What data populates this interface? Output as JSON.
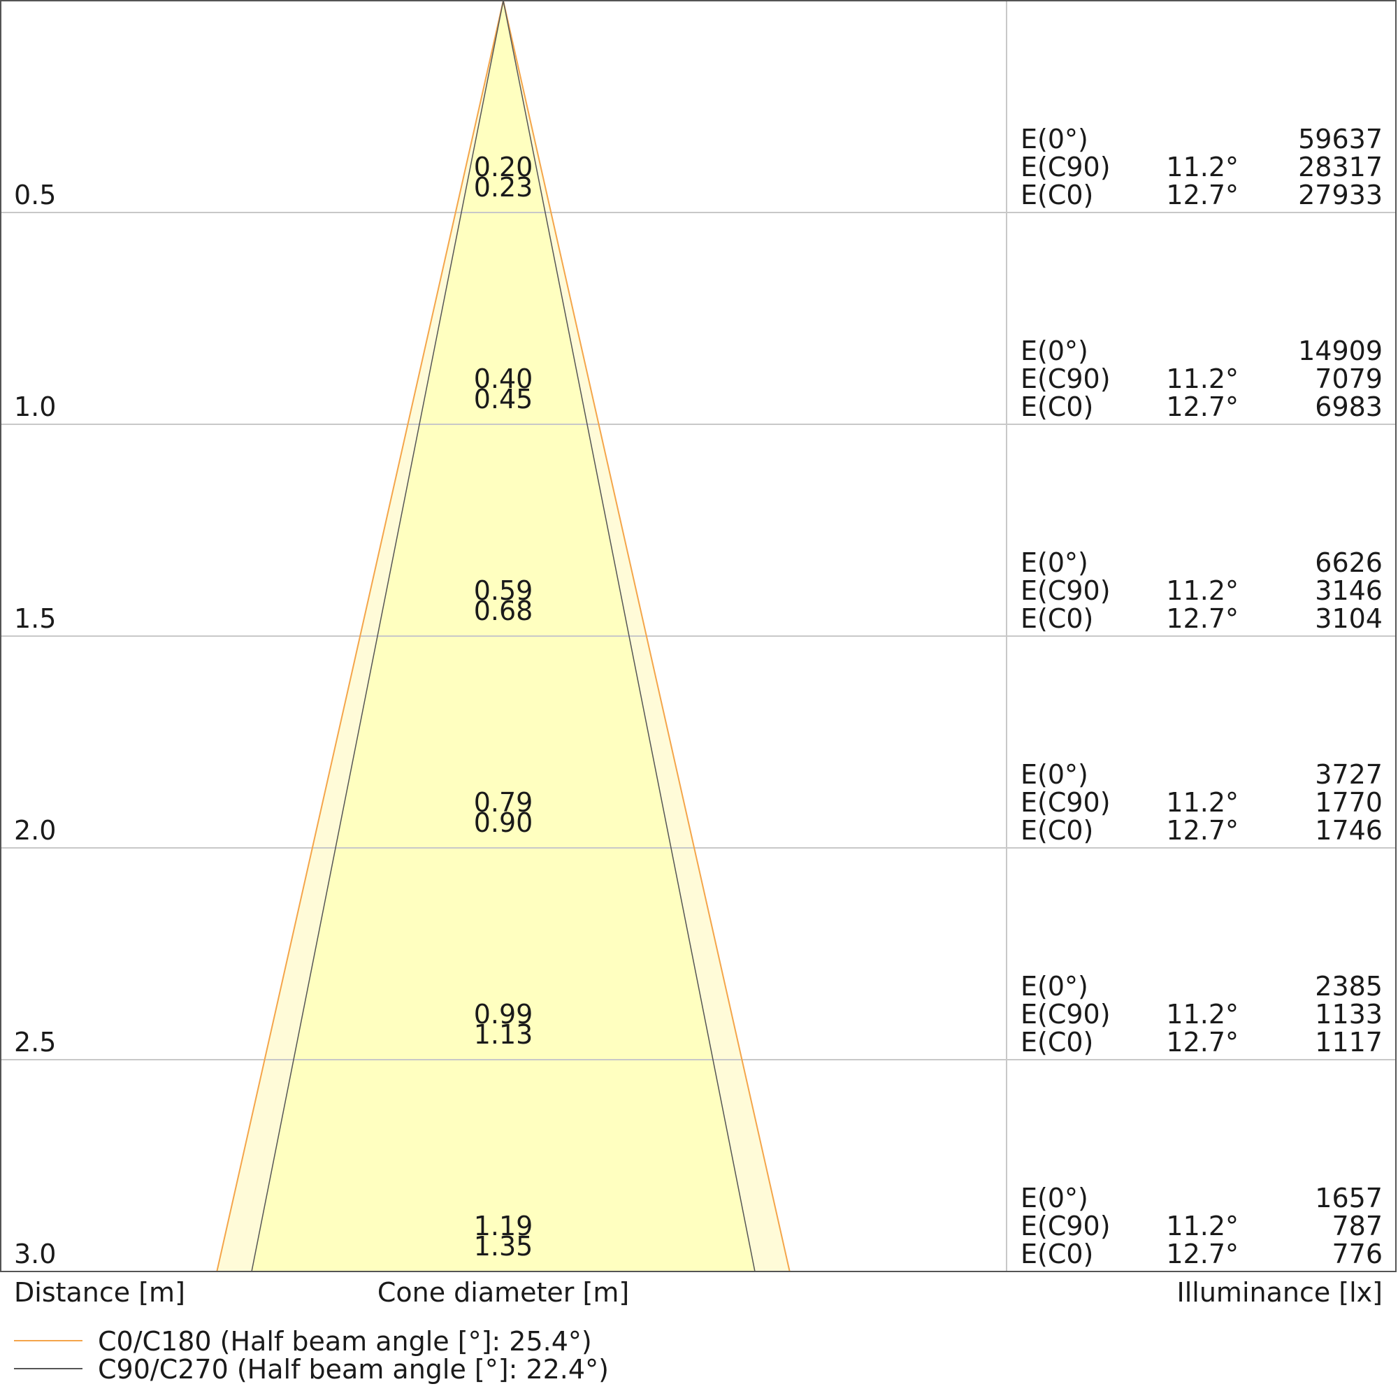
{
  "chart_data": {
    "type": "cone-diagram",
    "xlabel": "Distance [m]",
    "center_label": "Cone diameter [m]",
    "right_label": "Illuminance [lx]",
    "grid": true,
    "colors": {
      "c0": "#f4a54a",
      "c90": "#555555",
      "c0_fill": "#fffbd8",
      "c90_fill": "#ffffc0",
      "grid": "#c8c8c8",
      "frame": "#555555"
    },
    "series": [
      {
        "name": "C0/C180 (Half beam angle [°]: 25.4°)",
        "half_beam_angle": 25.4,
        "row_label": "E(C0)",
        "row_angle": "12.7°"
      },
      {
        "name": "C90/C270 (Half beam angle [°]: 22.4°)",
        "half_beam_angle": 22.4,
        "row_label": "E(C90)",
        "row_angle": "11.2°"
      }
    ],
    "center_row_label": "E(0°)",
    "rows": [
      {
        "distance": 0.5,
        "distance_label": "0.5",
        "d_c90": "0.20",
        "d_c0": "0.23",
        "e0": "59637",
        "ec90": "28317",
        "ec0": "27933"
      },
      {
        "distance": 1.0,
        "distance_label": "1.0",
        "d_c90": "0.40",
        "d_c0": "0.45",
        "e0": "14909",
        "ec90": "7079",
        "ec0": "6983"
      },
      {
        "distance": 1.5,
        "distance_label": "1.5",
        "d_c90": "0.59",
        "d_c0": "0.68",
        "e0": "6626",
        "ec90": "3146",
        "ec0": "3104"
      },
      {
        "distance": 2.0,
        "distance_label": "2.0",
        "d_c90": "0.79",
        "d_c0": "0.90",
        "e0": "3727",
        "ec90": "1770",
        "ec0": "1746"
      },
      {
        "distance": 2.5,
        "distance_label": "2.5",
        "d_c90": "0.99",
        "d_c0": "1.13",
        "e0": "2385",
        "ec90": "1133",
        "ec0": "1117"
      },
      {
        "distance": 3.0,
        "distance_label": "3.0",
        "d_c90": "1.19",
        "d_c0": "1.35",
        "e0": "1657",
        "ec90": "787",
        "ec0": "776"
      }
    ],
    "distance_range": [
      0,
      3.0
    ]
  }
}
